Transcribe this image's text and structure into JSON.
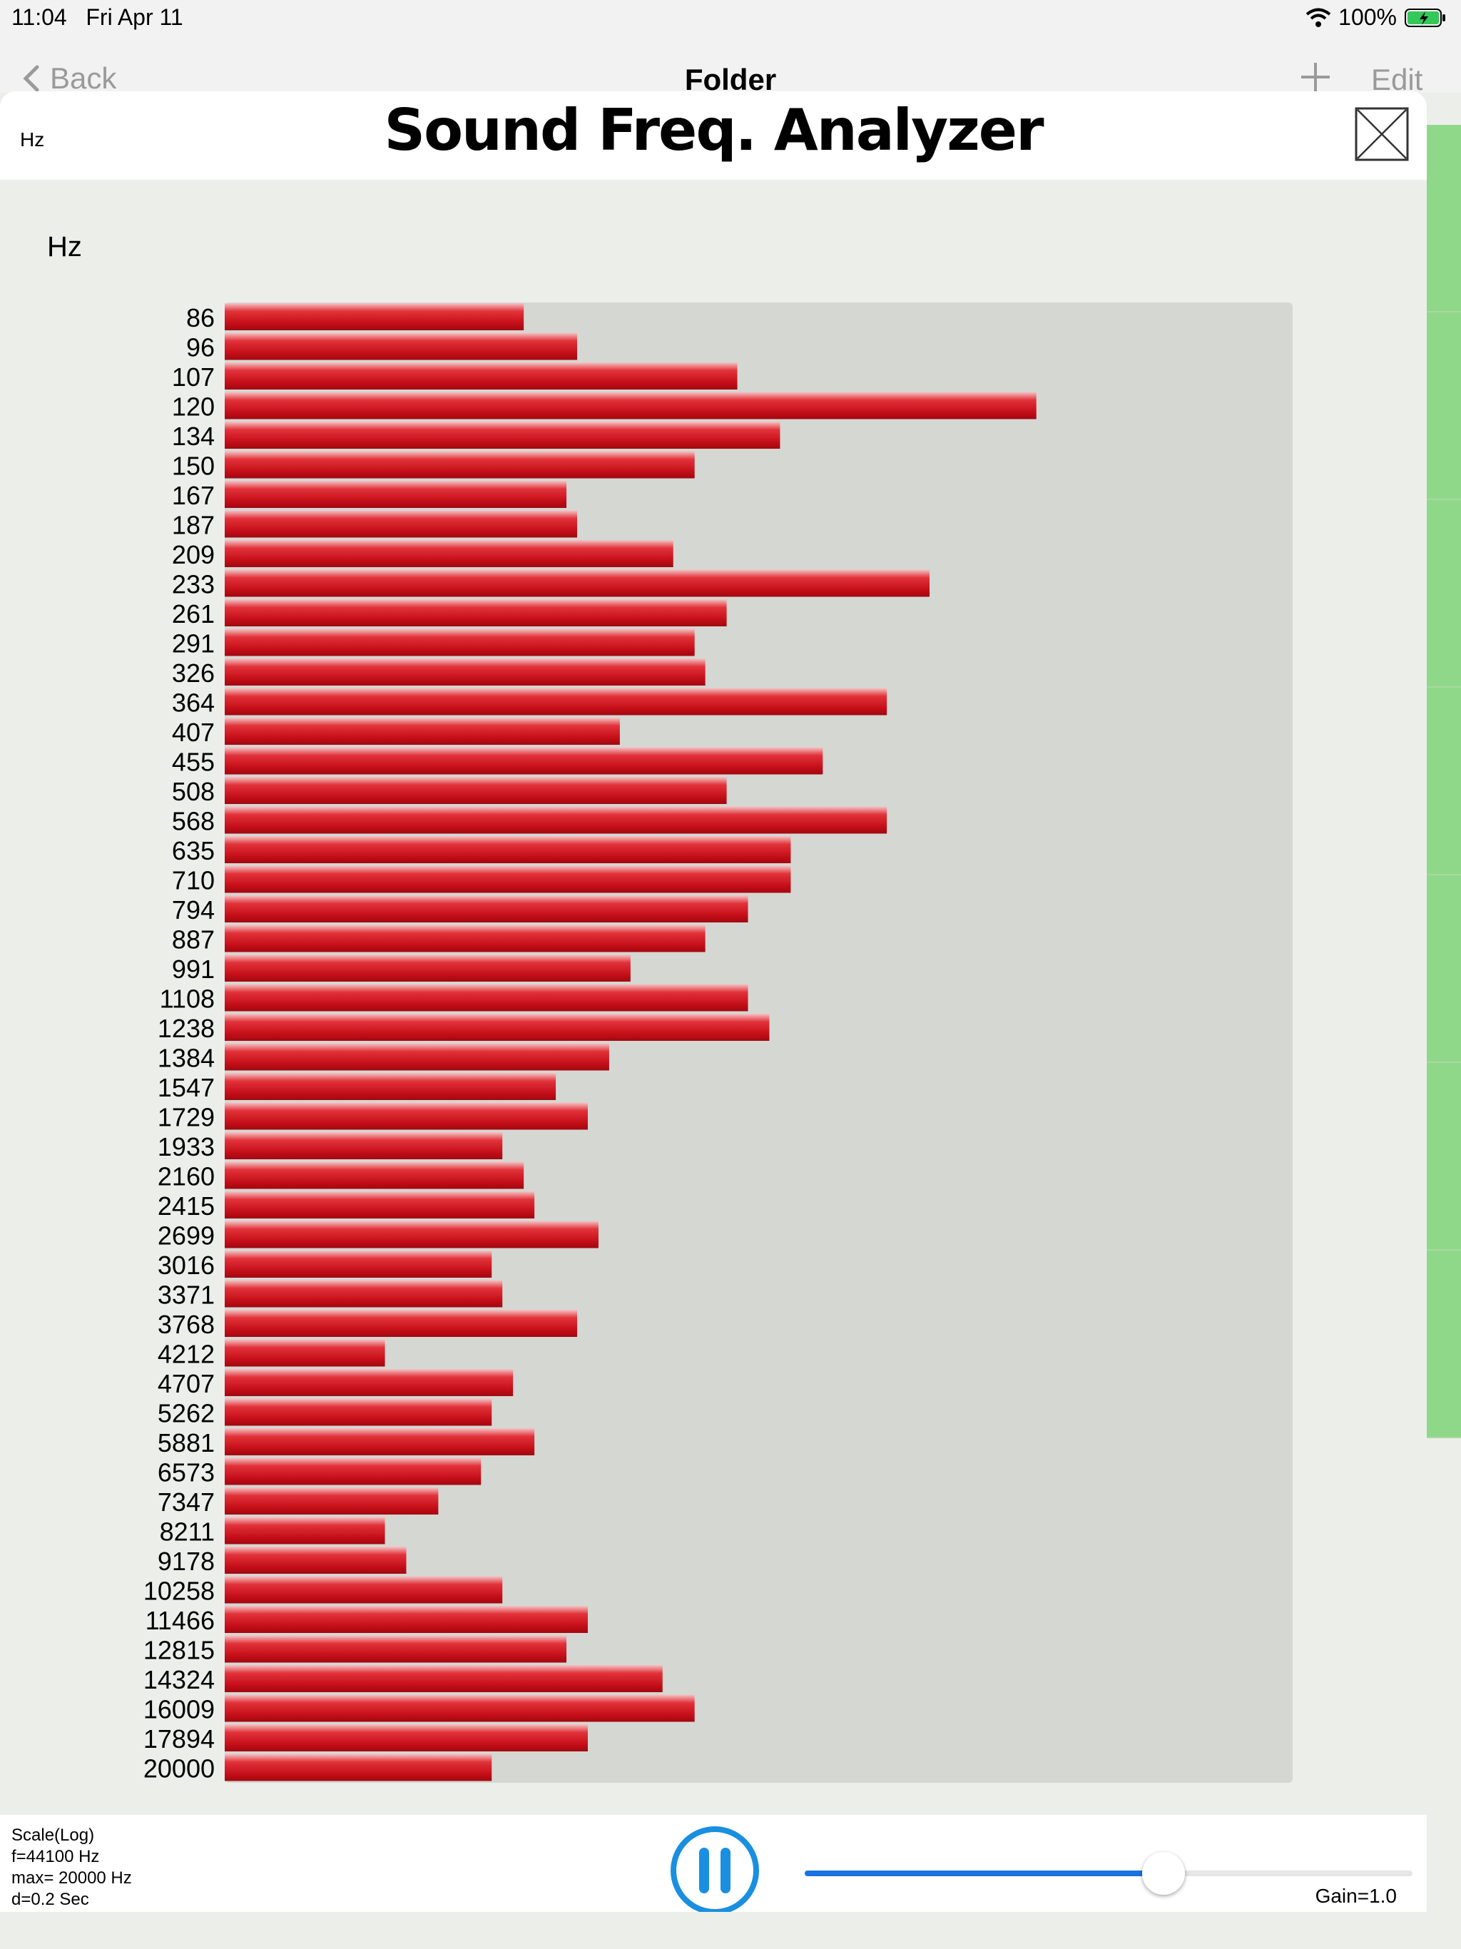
{
  "status_bar": {
    "time": "11:04",
    "date": "Fri Apr 11",
    "battery": "100%"
  },
  "nav": {
    "back_label": "Back",
    "title": "Folder",
    "edit_label": "Edit"
  },
  "header": {
    "unit_label": "Hz",
    "title": "Sound Freq. Analyzer"
  },
  "chart_data": {
    "type": "bar",
    "orientation": "horizontal",
    "ylabel": "Hz",
    "categories": [
      "86",
      "96",
      "107",
      "120",
      "134",
      "150",
      "167",
      "187",
      "209",
      "233",
      "261",
      "291",
      "326",
      "364",
      "407",
      "455",
      "508",
      "568",
      "635",
      "710",
      "794",
      "887",
      "991",
      "1108",
      "1238",
      "1384",
      "1547",
      "1729",
      "1933",
      "2160",
      "2415",
      "2699",
      "3016",
      "3371",
      "3768",
      "4212",
      "4707",
      "5262",
      "5881",
      "6573",
      "7347",
      "8211",
      "9178",
      "10258",
      "11466",
      "12815",
      "14324",
      "16009",
      "17894",
      "20000"
    ],
    "values": [
      0.28,
      0.33,
      0.48,
      0.76,
      0.52,
      0.44,
      0.32,
      0.33,
      0.42,
      0.66,
      0.47,
      0.44,
      0.45,
      0.62,
      0.37,
      0.56,
      0.47,
      0.62,
      0.53,
      0.53,
      0.49,
      0.45,
      0.38,
      0.49,
      0.51,
      0.36,
      0.31,
      0.34,
      0.26,
      0.28,
      0.29,
      0.35,
      0.25,
      0.26,
      0.33,
      0.15,
      0.27,
      0.25,
      0.29,
      0.24,
      0.2,
      0.15,
      0.17,
      0.26,
      0.34,
      0.32,
      0.41,
      0.44,
      0.34,
      0.25
    ],
    "xlim": [
      0,
      1
    ],
    "bar_color": "#d0111b",
    "track_color": "#d5d7d3",
    "grid": false
  },
  "footer": {
    "info_lines": [
      "Scale(Log)",
      "f=44100 Hz",
      "max= 20000 Hz",
      "d=0.2 Sec"
    ],
    "gain_label": "Gain=1.0",
    "gain_level": 0.59,
    "accent_color": "#1a73e0"
  }
}
